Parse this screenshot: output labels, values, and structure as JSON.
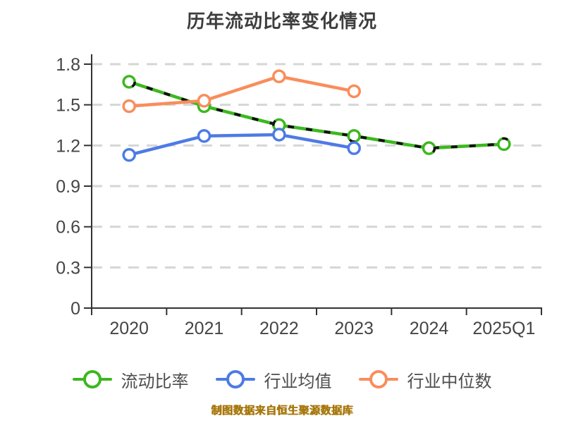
{
  "title": "历年流动比率变化情况",
  "footer": "制图数据来自恒生聚源数据库",
  "colors": {
    "grid": "#d6d6d6",
    "axis": "#333333",
    "tick_label": "#454545",
    "title_text": "#3d3d3d",
    "footer_text": "#a8790f",
    "green_overlay_dash": "#111111",
    "marker_fill": "#ffffff"
  },
  "chart_data": {
    "type": "line",
    "title": "历年流动比率变化情况",
    "categories": [
      "2020",
      "2021",
      "2022",
      "2023",
      "2024",
      "2025Q1"
    ],
    "series": [
      {
        "name": "流动比率",
        "color": "#3CB81F",
        "style": "solid with black dash overlay",
        "values": [
          1.67,
          1.49,
          1.35,
          1.27,
          1.18,
          1.21
        ]
      },
      {
        "name": "行业均值",
        "color": "#4D7BE5",
        "style": "solid",
        "values": [
          1.13,
          1.27,
          1.28,
          1.18,
          null,
          null
        ]
      },
      {
        "name": "行业中位数",
        "color": "#F98D5C",
        "style": "solid",
        "values": [
          1.49,
          1.53,
          1.71,
          1.6,
          null,
          null
        ]
      }
    ],
    "xlabel": "",
    "ylabel": "",
    "ylim": [
      0,
      1.8
    ],
    "yticks": [
      0,
      0.3,
      0.6,
      0.9,
      1.2,
      1.5,
      1.8
    ],
    "grid": "horizontal dashed",
    "legend_position": "bottom",
    "markers": "white circles with colored ring"
  }
}
